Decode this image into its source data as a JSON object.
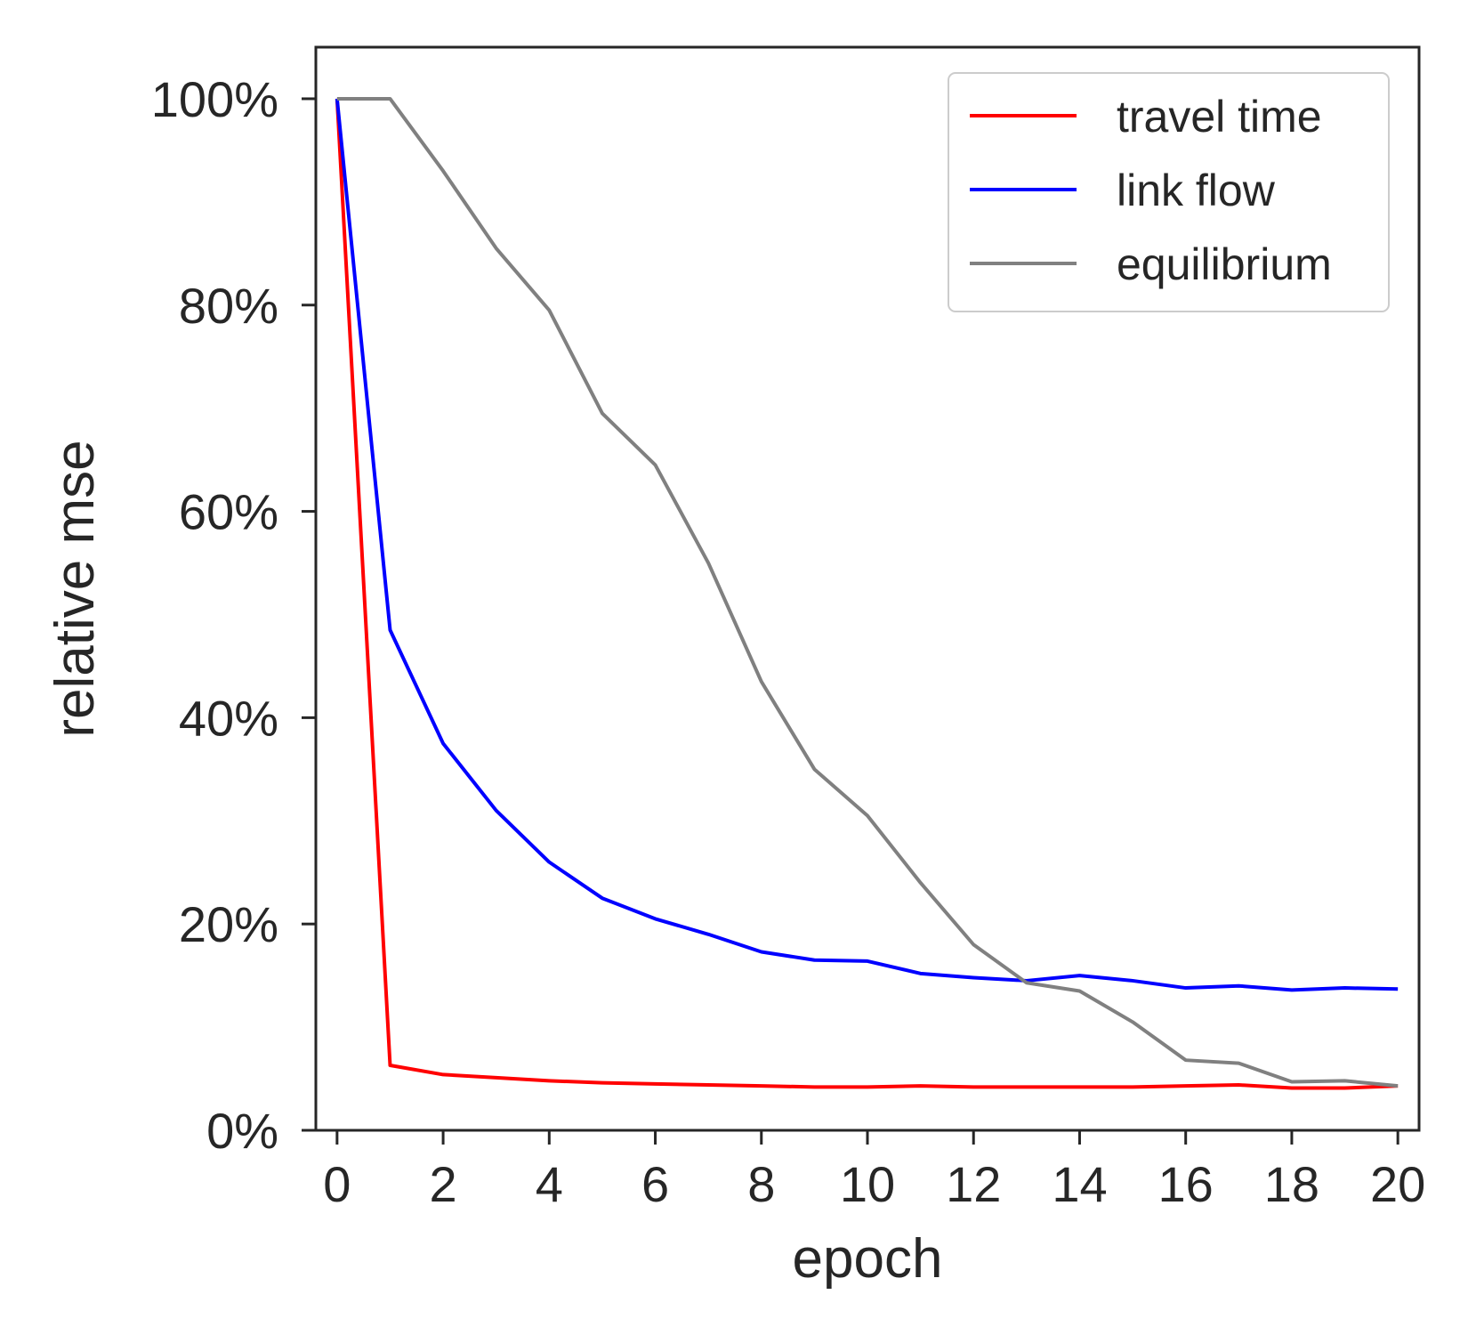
{
  "chart_data": {
    "type": "line",
    "xlabel": "epoch",
    "ylabel": "relative mse",
    "xlim": [
      -0.4,
      20.4
    ],
    "ylim": [
      0,
      105
    ],
    "xticks": [
      0,
      2,
      4,
      6,
      8,
      10,
      12,
      14,
      16,
      18,
      20
    ],
    "yticks": [
      0,
      20,
      40,
      60,
      80,
      100
    ],
    "ytick_labels": [
      "0%",
      "20%",
      "40%",
      "60%",
      "80%",
      "100%"
    ],
    "xtick_labels": [
      "0",
      "2",
      "4",
      "6",
      "8",
      "10",
      "12",
      "14",
      "16",
      "18",
      "20"
    ],
    "grid": false,
    "legend_position": "top-right",
    "x": [
      0,
      1,
      2,
      3,
      4,
      5,
      6,
      7,
      8,
      9,
      10,
      11,
      12,
      13,
      14,
      15,
      16,
      17,
      18,
      19,
      20
    ],
    "series": [
      {
        "name": "travel time",
        "color": "#ff0000",
        "values": [
          100,
          6.3,
          5.4,
          5.1,
          4.8,
          4.6,
          4.5,
          4.4,
          4.3,
          4.2,
          4.2,
          4.3,
          4.2,
          4.2,
          4.2,
          4.2,
          4.3,
          4.4,
          4.1,
          4.1,
          4.3
        ]
      },
      {
        "name": "link flow",
        "color": "#0000ff",
        "values": [
          100,
          48.5,
          37.5,
          31.0,
          26.0,
          22.5,
          20.5,
          19.0,
          17.3,
          16.5,
          16.4,
          15.2,
          14.8,
          14.5,
          15.0,
          14.5,
          13.8,
          14.0,
          13.6,
          13.8,
          13.7
        ]
      },
      {
        "name": "equilibrium",
        "color": "#808080",
        "values": [
          100,
          100,
          93.0,
          85.5,
          79.5,
          69.5,
          64.5,
          55.0,
          43.5,
          35.0,
          30.5,
          24.0,
          18.0,
          14.3,
          13.5,
          10.5,
          6.8,
          6.5,
          4.7,
          4.8,
          4.3
        ]
      }
    ]
  }
}
